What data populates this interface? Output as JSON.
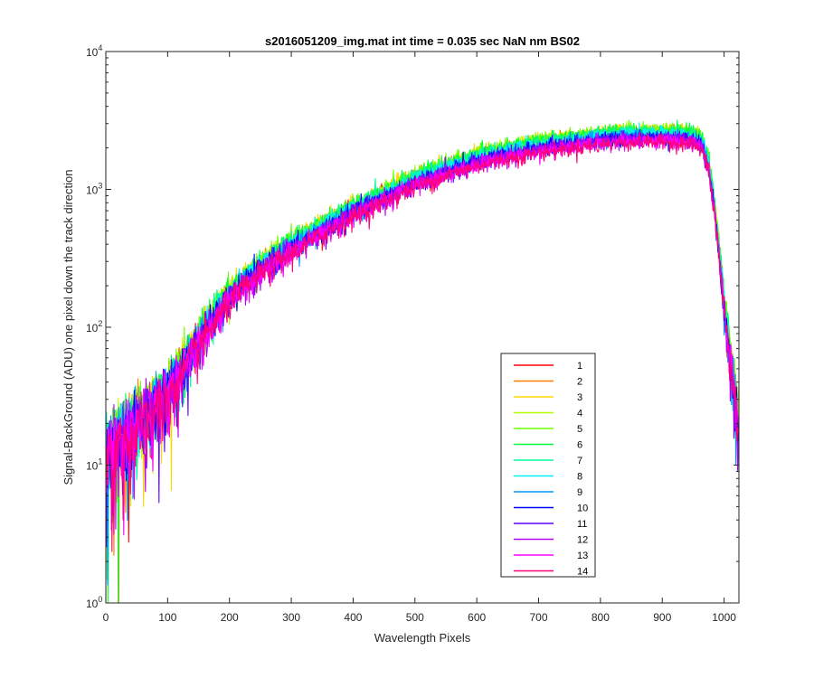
{
  "chart_data": {
    "type": "line",
    "title": "s2016051209_img.mat int time = 0.035 sec  NaN nm BS02",
    "xlabel": "Wavelength Pixels",
    "ylabel": "Signal-BackGround (ADU) one pixel down the track direction",
    "xlim": [
      0,
      1024
    ],
    "ylim": [
      1,
      10000
    ],
    "yscale": "log",
    "x_ticks": [
      0,
      100,
      200,
      300,
      400,
      500,
      600,
      700,
      800,
      900,
      1000
    ],
    "y_ticks": [
      {
        "value": 1,
        "base": "10",
        "exp": "0"
      },
      {
        "value": 10,
        "base": "10",
        "exp": "1"
      },
      {
        "value": 100,
        "base": "10",
        "exp": "2"
      },
      {
        "value": 1000,
        "base": "10",
        "exp": "3"
      },
      {
        "value": 10000,
        "base": "10",
        "exp": "4"
      }
    ],
    "grid": false,
    "legend_position": "lower-right",
    "profile": {
      "x": [
        0,
        20,
        50,
        80,
        100,
        130,
        160,
        200,
        250,
        300,
        350,
        400,
        450,
        500,
        550,
        600,
        650,
        700,
        750,
        800,
        850,
        900,
        930,
        950,
        965,
        975,
        985,
        995,
        1005,
        1015,
        1023
      ],
      "y": [
        12,
        15,
        20,
        27,
        35,
        55,
        95,
        170,
        270,
        380,
        520,
        700,
        900,
        1150,
        1400,
        1650,
        1850,
        2050,
        2200,
        2350,
        2450,
        2450,
        2420,
        2350,
        2100,
        1500,
        700,
        250,
        90,
        40,
        20
      ]
    },
    "series": [
      {
        "name": "1",
        "color": "#ff0000",
        "scale": 1.02
      },
      {
        "name": "2",
        "color": "#ff7f00",
        "scale": 1.07
      },
      {
        "name": "3",
        "color": "#ffd700",
        "scale": 1.1
      },
      {
        "name": "4",
        "color": "#b4ff00",
        "scale": 1.08
      },
      {
        "name": "5",
        "color": "#6eff00",
        "scale": 1.12
      },
      {
        "name": "6",
        "color": "#00ff3c",
        "scale": 1.1
      },
      {
        "name": "7",
        "color": "#00ff9a",
        "scale": 1.06
      },
      {
        "name": "8",
        "color": "#00f0ff",
        "scale": 1.04
      },
      {
        "name": "9",
        "color": "#0096ff",
        "scale": 1.0
      },
      {
        "name": "10",
        "color": "#0000ff",
        "scale": 0.97
      },
      {
        "name": "11",
        "color": "#6400ff",
        "scale": 0.96
      },
      {
        "name": "12",
        "color": "#b400ff",
        "scale": 0.94
      },
      {
        "name": "13",
        "color": "#ff00ff",
        "scale": 0.92
      },
      {
        "name": "14",
        "color": "#ff0078",
        "scale": 0.9
      }
    ]
  }
}
